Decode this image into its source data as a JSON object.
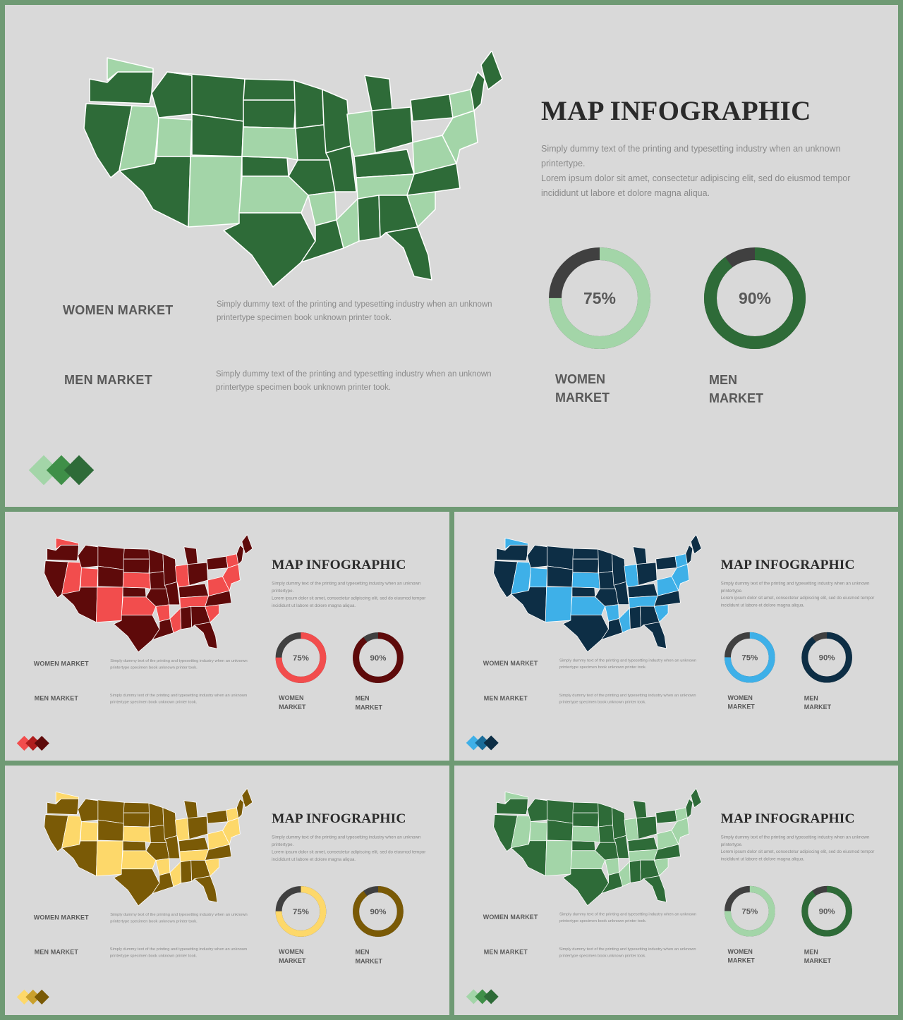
{
  "slide": {
    "title": "MAP INFOGRAPHIC",
    "description_lines": [
      "Simply dummy text of the printing and typesetting industry when an unknown printertype.",
      "Lorem ipsum dolor sit amet, consectetur adipiscing elit, sed do eiusmod tempor incididunt ut labore et dolore magna aliqua."
    ],
    "women_label": "WOMEN MARKET",
    "men_label": "MEN MARKET",
    "women_text": "Simply dummy text of the printing and typesetting industry when an unknown printertype specimen book unknown printer took.",
    "men_text": "Simply dummy text of the printing and typesetting industry when an unknown printertype specimen book unknown printer took.",
    "women_donut": {
      "value": "75%",
      "fraction": 0.75,
      "caption_line1": "WOMEN",
      "caption_line2": "MARKET"
    },
    "men_donut": {
      "value": "90%",
      "fraction": 0.9,
      "caption_line1": "MEN",
      "caption_line2": "MARKET"
    }
  },
  "themes": [
    {
      "name": "green",
      "light": "#a3d5a8",
      "dark": "#2e6b38",
      "mid": "#3f8f48",
      "remainder": "#404040"
    },
    {
      "name": "red",
      "light": "#f24d4d",
      "dark": "#5e0a0a",
      "mid": "#b01e1e",
      "remainder": "#404040"
    },
    {
      "name": "blue",
      "light": "#3eb0e8",
      "dark": "#0d2e45",
      "mid": "#1b6d9a",
      "remainder": "#404040"
    },
    {
      "name": "yellow",
      "light": "#fdd86a",
      "dark": "#7a5a06",
      "mid": "#c9a02e",
      "remainder": "#404040"
    },
    {
      "name": "green",
      "light": "#a3d5a8",
      "dark": "#2e6b38",
      "mid": "#3f8f48",
      "remainder": "#404040"
    }
  ]
}
